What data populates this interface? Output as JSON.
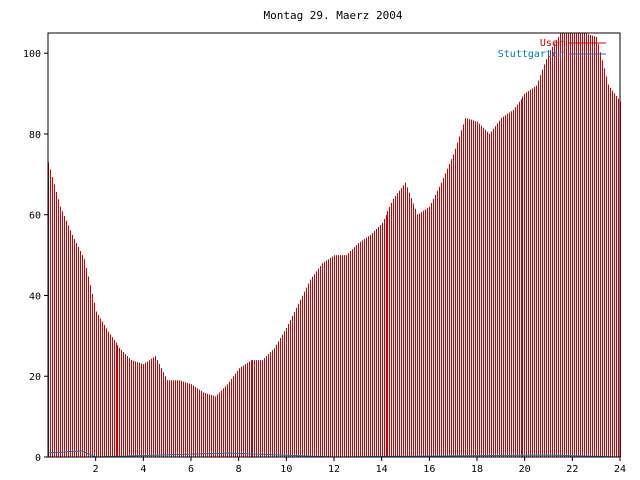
{
  "chart_data": {
    "type": "bar",
    "title": "Montag 29. Maerz 2004",
    "xlabel": "",
    "ylabel": "",
    "xlim": [
      0,
      24
    ],
    "ylim": [
      0,
      105
    ],
    "x_ticks": [
      "2",
      "4",
      "6",
      "8",
      "10",
      "12",
      "14",
      "16",
      "18",
      "20",
      "22",
      "24"
    ],
    "y_ticks": [
      "0",
      "20",
      "40",
      "60",
      "80",
      "100"
    ],
    "grid": false,
    "legend_position": "top-right",
    "series": [
      {
        "name": "User",
        "color": "#cc0000",
        "type": "bar",
        "x": [
          0,
          0.5,
          1,
          1.5,
          2,
          2.5,
          3,
          3.5,
          4,
          4.5,
          5,
          5.5,
          6,
          6.5,
          7,
          7.5,
          8,
          8.5,
          9,
          9.5,
          10,
          10.5,
          11,
          11.5,
          12,
          12.5,
          13,
          13.5,
          14,
          14.5,
          15,
          15.5,
          16,
          16.5,
          17,
          17.5,
          18,
          18.5,
          19,
          19.5,
          20,
          20.5,
          21,
          21.5,
          22,
          22.5,
          23,
          23.5,
          24
        ],
        "values": [
          73,
          62,
          55,
          49,
          36,
          31,
          27,
          24,
          23,
          25,
          19,
          19,
          18,
          16,
          15,
          18,
          22,
          24,
          24,
          27,
          32,
          38,
          44,
          48,
          50,
          50,
          53,
          55,
          58,
          64,
          68,
          60,
          62,
          68,
          75,
          84,
          83,
          80,
          84,
          86,
          90,
          92,
          100,
          105,
          105,
          105,
          104,
          92,
          88
        ]
      },
      {
        "name": "Stuttgarter",
        "color": "#0077bb",
        "type": "line",
        "x": [
          0,
          1.4,
          2.0,
          7.6,
          12.0,
          20.9,
          24
        ],
        "values": [
          1,
          1.5,
          0,
          1,
          0,
          0.5,
          0
        ]
      }
    ]
  }
}
